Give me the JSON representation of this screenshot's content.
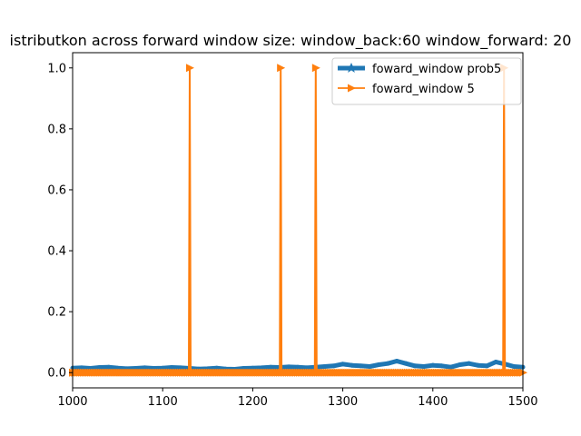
{
  "chart_data": {
    "type": "line",
    "title": "istributkon across forward window size: window_back:60 window_forward: 20",
    "xlabel": "",
    "ylabel": "",
    "xlim": [
      1000,
      1500
    ],
    "ylim": [
      -0.05,
      1.05
    ],
    "xticks": [
      1000,
      1100,
      1200,
      1300,
      1400,
      1500
    ],
    "yticks": [
      0.0,
      0.2,
      0.4,
      0.6,
      0.8,
      1.0
    ],
    "xtick_labels": [
      "1000",
      "1100",
      "1200",
      "1300",
      "1400",
      "1500"
    ],
    "ytick_labels": [
      "0.0",
      "0.2",
      "0.4",
      "0.6",
      "0.8",
      "1.0"
    ],
    "grid": false,
    "legend_position": "top-right",
    "legend": [
      "foward_window prob5",
      "foward_window 5"
    ],
    "series": [
      {
        "name": "foward_window prob5",
        "color": "#1f77b4",
        "marker": "star",
        "x": [
          1000,
          1010,
          1020,
          1030,
          1040,
          1050,
          1060,
          1070,
          1080,
          1090,
          1100,
          1110,
          1120,
          1130,
          1140,
          1150,
          1160,
          1170,
          1180,
          1190,
          1200,
          1210,
          1220,
          1230,
          1240,
          1250,
          1260,
          1270,
          1280,
          1290,
          1300,
          1310,
          1320,
          1330,
          1340,
          1350,
          1360,
          1370,
          1380,
          1390,
          1400,
          1410,
          1420,
          1430,
          1440,
          1450,
          1460,
          1470,
          1480,
          1490,
          1500
        ],
        "values": [
          0.015,
          0.016,
          0.014,
          0.017,
          0.018,
          0.015,
          0.013,
          0.014,
          0.016,
          0.014,
          0.015,
          0.017,
          0.016,
          0.014,
          0.012,
          0.013,
          0.015,
          0.012,
          0.011,
          0.014,
          0.015,
          0.016,
          0.018,
          0.017,
          0.019,
          0.018,
          0.016,
          0.018,
          0.02,
          0.022,
          0.028,
          0.024,
          0.022,
          0.02,
          0.026,
          0.03,
          0.038,
          0.03,
          0.022,
          0.02,
          0.024,
          0.022,
          0.018,
          0.026,
          0.03,
          0.024,
          0.022,
          0.035,
          0.028,
          0.02,
          0.018
        ]
      },
      {
        "name": "foward_window 5",
        "color": "#ff7f0e",
        "marker": "triangle-right",
        "x": [
          1000,
          1129,
          1130,
          1131,
          1230,
          1231,
          1232,
          1269,
          1270,
          1271,
          1478,
          1479,
          1480,
          1500
        ],
        "values": [
          0,
          0,
          1,
          0,
          0,
          1,
          0,
          0,
          1,
          0,
          0,
          1,
          0,
          0
        ]
      }
    ]
  }
}
